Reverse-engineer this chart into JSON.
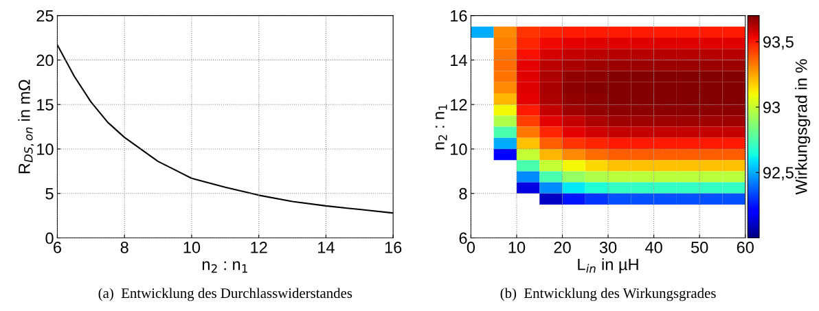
{
  "chart_data": [
    {
      "type": "line",
      "xlabel": "n$_{2}$ : n$_{1}$",
      "ylabel": "R$_{DS,on}$ in mΩ",
      "annotations": [
        "(a)  Entwicklung des Durchlasswiderstandes"
      ],
      "x": [
        6,
        6.5,
        7,
        7.5,
        8,
        9,
        10,
        11,
        12,
        13,
        14,
        15,
        16
      ],
      "series": [
        {
          "color": "#000000",
          "values": [
            21.7,
            18.2,
            15.3,
            13.0,
            11.3,
            8.6,
            6.7,
            5.7,
            4.8,
            4.1,
            3.6,
            3.2,
            2.8
          ]
        }
      ],
      "xlim": [
        6,
        16
      ],
      "ylim": [
        0,
        25
      ],
      "xticks": [
        6,
        8,
        10,
        12,
        14,
        16
      ],
      "yticks": [
        0,
        5,
        10,
        15,
        20,
        25
      ],
      "grid": true,
      "legend": false,
      "marker": "none",
      "line_style": "solid"
    },
    {
      "type": "heatmap",
      "xlabel": "L$_{in}$ in µH",
      "ylabel": "n$_{2}$ : n$_{1}$",
      "clabel": "Wirkungsgrad in %",
      "annotations": [
        "(b)  Entwicklung des Wirkungsgrades"
      ],
      "x": [
        2.5,
        7.5,
        12.5,
        17.5,
        22.5,
        27.5,
        32.5,
        37.5,
        42.5,
        47.5,
        52.5,
        57.5
      ],
      "y": [
        15.25,
        14.75,
        14.25,
        13.75,
        13.25,
        12.75,
        12.25,
        11.75,
        11.25,
        10.75,
        10.25,
        9.75,
        9.25,
        8.75,
        8.25,
        7.75
      ],
      "cells": [
        [
          92.5,
          93.3,
          93.45,
          93.48,
          93.5,
          93.5,
          93.5,
          93.5,
          93.5,
          93.5,
          93.5,
          93.5
        ],
        [
          null,
          93.32,
          93.48,
          93.53,
          93.55,
          93.56,
          93.56,
          93.56,
          93.56,
          93.56,
          93.56,
          93.56
        ],
        [
          null,
          93.34,
          93.52,
          93.57,
          93.6,
          93.61,
          93.62,
          93.62,
          93.62,
          93.62,
          93.62,
          93.62
        ],
        [
          null,
          93.35,
          93.55,
          93.61,
          93.64,
          93.65,
          93.66,
          93.66,
          93.66,
          93.66,
          93.66,
          93.66
        ],
        [
          null,
          93.34,
          93.56,
          93.63,
          93.67,
          93.68,
          93.69,
          93.69,
          93.69,
          93.69,
          93.69,
          93.69
        ],
        [
          null,
          93.3,
          93.56,
          93.64,
          93.68,
          93.69,
          93.69,
          93.69,
          93.69,
          93.69,
          93.69,
          93.69
        ],
        [
          null,
          93.22,
          93.55,
          93.63,
          93.67,
          93.68,
          93.69,
          93.69,
          93.69,
          93.69,
          93.69,
          93.69
        ],
        [
          null,
          93.1,
          93.5,
          93.6,
          93.65,
          93.67,
          93.68,
          93.68,
          93.68,
          93.68,
          93.68,
          93.68
        ],
        [
          null,
          92.95,
          93.43,
          93.55,
          93.6,
          93.63,
          93.65,
          93.65,
          93.65,
          93.65,
          93.65,
          93.65
        ],
        [
          null,
          92.75,
          93.33,
          93.48,
          93.55,
          93.58,
          93.6,
          93.6,
          93.6,
          93.6,
          93.6,
          93.6
        ],
        [
          null,
          92.5,
          93.2,
          93.38,
          93.45,
          93.48,
          93.5,
          93.5,
          93.5,
          93.5,
          93.5,
          93.5
        ],
        [
          null,
          92.2,
          93.0,
          93.22,
          93.3,
          93.35,
          93.38,
          93.38,
          93.38,
          93.38,
          93.38,
          93.38
        ],
        [
          null,
          null,
          92.75,
          93.0,
          93.1,
          93.16,
          93.2,
          93.2,
          93.2,
          93.2,
          93.2,
          93.2
        ],
        [
          null,
          null,
          92.45,
          92.75,
          92.9,
          92.95,
          92.98,
          92.98,
          92.98,
          92.98,
          92.98,
          92.98
        ],
        [
          null,
          null,
          92.15,
          92.45,
          92.6,
          92.66,
          92.7,
          92.7,
          92.7,
          92.7,
          92.7,
          92.7
        ],
        [
          null,
          null,
          null,
          92.1,
          92.25,
          92.3,
          92.35,
          92.35,
          92.35,
          92.35,
          92.35,
          92.35
        ]
      ],
      "xlim": [
        0,
        60
      ],
      "ylim": [
        6,
        16
      ],
      "xticks": [
        0,
        10,
        20,
        30,
        40,
        50,
        60
      ],
      "yticks": [
        6,
        8,
        10,
        12,
        14,
        16
      ],
      "clim": [
        92.0,
        93.7
      ],
      "cticks": [
        {
          "value": 92.5,
          "label": "92,5"
        },
        {
          "value": 93,
          "label": "93"
        },
        {
          "value": 93.5,
          "label": "93,5"
        }
      ],
      "grid": true
    }
  ]
}
